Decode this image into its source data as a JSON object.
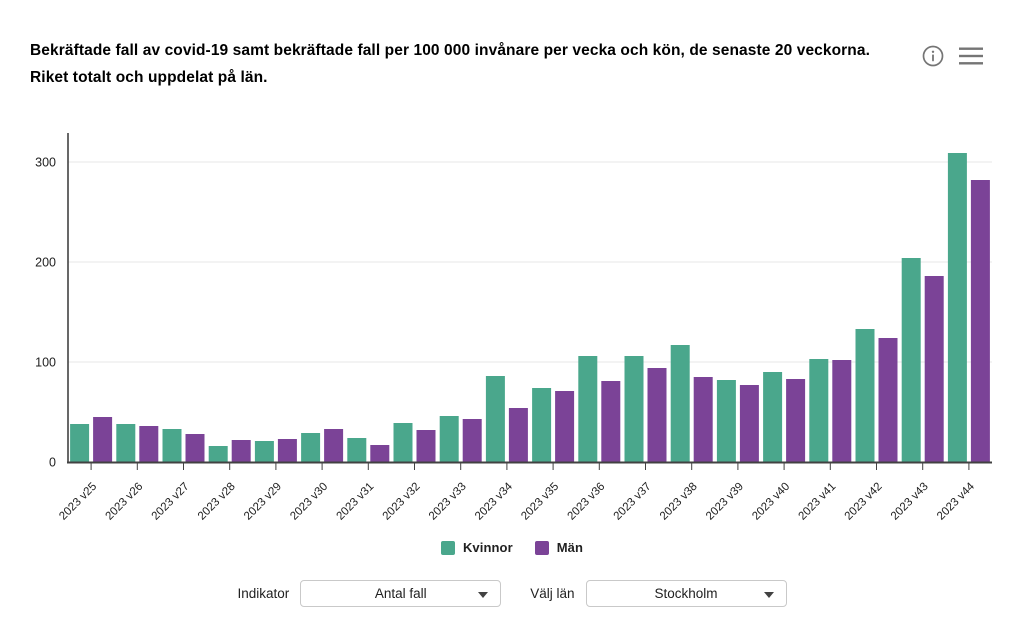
{
  "header": {
    "title": "Bekräftade fall av covid-19 samt bekräftade fall per 100 000 invånare per vecka och kön, de senaste 20 veckorna. Riket totalt och uppdelat på län.",
    "info_icon": "info-circle",
    "menu_icon": "hamburger-menu",
    "icon_color": "#757575"
  },
  "chart_data": {
    "type": "bar",
    "categories": [
      "2023 v25",
      "2023 v26",
      "2023 v27",
      "2023 v28",
      "2023 v29",
      "2023 v30",
      "2023 v31",
      "2023 v32",
      "2023 v33",
      "2023 v34",
      "2023 v35",
      "2023 v36",
      "2023 v37",
      "2023 v38",
      "2023 v39",
      "2023 v40",
      "2023 v41",
      "2023 v42",
      "2023 v43",
      "2023 v44"
    ],
    "series": [
      {
        "name": "Kvinnor",
        "color": "#4aa78c",
        "values": [
          38,
          38,
          33,
          16,
          21,
          29,
          24,
          39,
          46,
          86,
          74,
          106,
          106,
          117,
          82,
          90,
          103,
          133,
          204,
          309
        ]
      },
      {
        "name": "Män",
        "color": "#7b4397",
        "values": [
          45,
          36,
          28,
          22,
          23,
          33,
          17,
          32,
          43,
          54,
          71,
          81,
          94,
          85,
          77,
          83,
          102,
          124,
          186,
          282
        ]
      }
    ],
    "title": "",
    "xlabel": "",
    "ylabel": "",
    "ylim": [
      0,
      330
    ],
    "yticks": [
      0,
      100,
      200,
      300
    ],
    "grid": true,
    "legend_position": "bottom",
    "axis_color": "#424242",
    "grid_color": "#ececec",
    "tick_label_color": "#212121"
  },
  "legend": {
    "items": [
      {
        "label": "Kvinnor",
        "color": "#4aa78c"
      },
      {
        "label": "Män",
        "color": "#7b4397"
      }
    ]
  },
  "controls": {
    "indicator_label": "Indikator",
    "indicator_value": "Antal fall",
    "region_label": "Välj län",
    "region_value": "Stockholm"
  }
}
